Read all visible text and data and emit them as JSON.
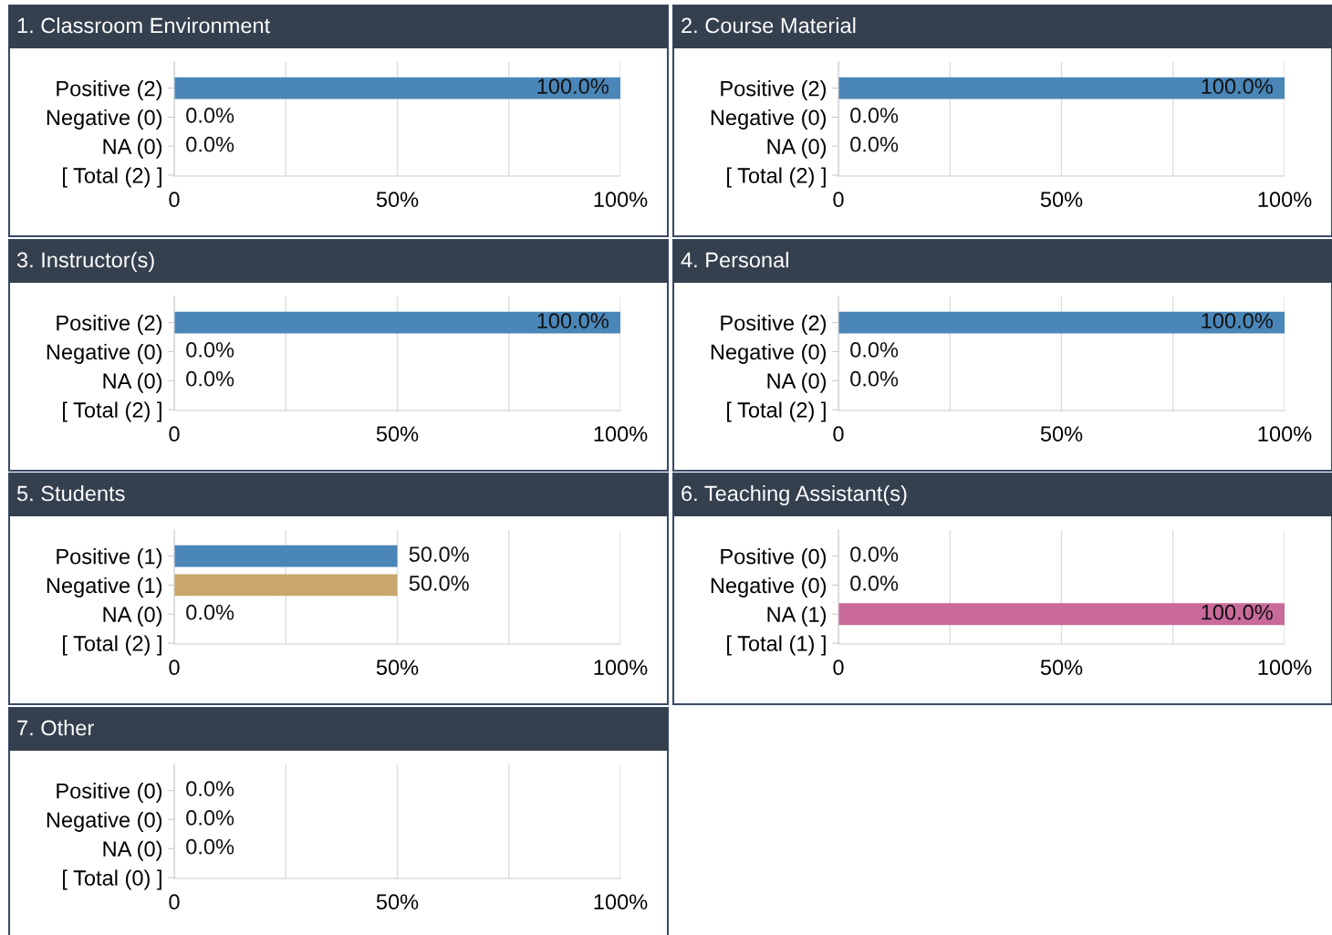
{
  "chart_data": [
    {
      "type": "bar",
      "orientation": "horizontal",
      "title": "1. Classroom Environment",
      "categories": [
        "Positive (2)",
        "Negative (0)",
        "NA (0)",
        "[ Total (2) ]"
      ],
      "values": [
        100,
        0,
        0,
        null
      ],
      "value_labels": [
        "100.0%",
        "0.0%",
        "0.0%",
        null
      ],
      "colors": [
        "#4a86b8",
        "#c9a66b",
        "#c96a9a",
        null
      ],
      "xlim": [
        0,
        100
      ],
      "xticks": [
        {
          "value": 0,
          "label": "0"
        },
        {
          "value": 25,
          "label": null
        },
        {
          "value": 50,
          "label": "50%"
        },
        {
          "value": 75,
          "label": null
        },
        {
          "value": 100,
          "label": "100%"
        }
      ],
      "grid": "x",
      "legend": false
    },
    {
      "type": "bar",
      "orientation": "horizontal",
      "title": "2. Course Material",
      "categories": [
        "Positive (2)",
        "Negative (0)",
        "NA (0)",
        "[ Total (2) ]"
      ],
      "values": [
        100,
        0,
        0,
        null
      ],
      "value_labels": [
        "100.0%",
        "0.0%",
        "0.0%",
        null
      ],
      "colors": [
        "#4a86b8",
        "#c9a66b",
        "#c96a9a",
        null
      ],
      "xlim": [
        0,
        100
      ],
      "xticks": [
        {
          "value": 0,
          "label": "0"
        },
        {
          "value": 25,
          "label": null
        },
        {
          "value": 50,
          "label": "50%"
        },
        {
          "value": 75,
          "label": null
        },
        {
          "value": 100,
          "label": "100%"
        }
      ],
      "grid": "x",
      "legend": false
    },
    {
      "type": "bar",
      "orientation": "horizontal",
      "title": "3. Instructor(s)",
      "categories": [
        "Positive (2)",
        "Negative (0)",
        "NA (0)",
        "[ Total (2) ]"
      ],
      "values": [
        100,
        0,
        0,
        null
      ],
      "value_labels": [
        "100.0%",
        "0.0%",
        "0.0%",
        null
      ],
      "colors": [
        "#4a86b8",
        "#c9a66b",
        "#c96a9a",
        null
      ],
      "xlim": [
        0,
        100
      ],
      "xticks": [
        {
          "value": 0,
          "label": "0"
        },
        {
          "value": 25,
          "label": null
        },
        {
          "value": 50,
          "label": "50%"
        },
        {
          "value": 75,
          "label": null
        },
        {
          "value": 100,
          "label": "100%"
        }
      ],
      "grid": "x",
      "legend": false
    },
    {
      "type": "bar",
      "orientation": "horizontal",
      "title": "4. Personal",
      "categories": [
        "Positive (2)",
        "Negative (0)",
        "NA (0)",
        "[ Total (2) ]"
      ],
      "values": [
        100,
        0,
        0,
        null
      ],
      "value_labels": [
        "100.0%",
        "0.0%",
        "0.0%",
        null
      ],
      "colors": [
        "#4a86b8",
        "#c9a66b",
        "#c96a9a",
        null
      ],
      "xlim": [
        0,
        100
      ],
      "xticks": [
        {
          "value": 0,
          "label": "0"
        },
        {
          "value": 25,
          "label": null
        },
        {
          "value": 50,
          "label": "50%"
        },
        {
          "value": 75,
          "label": null
        },
        {
          "value": 100,
          "label": "100%"
        }
      ],
      "grid": "x",
      "legend": false
    },
    {
      "type": "bar",
      "orientation": "horizontal",
      "title": "5. Students",
      "categories": [
        "Positive (1)",
        "Negative (1)",
        "NA (0)",
        "[ Total (2) ]"
      ],
      "values": [
        50,
        50,
        0,
        null
      ],
      "value_labels": [
        "50.0%",
        "50.0%",
        "0.0%",
        null
      ],
      "colors": [
        "#4a86b8",
        "#c9a66b",
        "#c96a9a",
        null
      ],
      "xlim": [
        0,
        100
      ],
      "xticks": [
        {
          "value": 0,
          "label": "0"
        },
        {
          "value": 25,
          "label": null
        },
        {
          "value": 50,
          "label": "50%"
        },
        {
          "value": 75,
          "label": null
        },
        {
          "value": 100,
          "label": "100%"
        }
      ],
      "grid": "x",
      "legend": false
    },
    {
      "type": "bar",
      "orientation": "horizontal",
      "title": "6. Teaching Assistant(s)",
      "categories": [
        "Positive (0)",
        "Negative (0)",
        "NA (1)",
        "[ Total (1) ]"
      ],
      "values": [
        0,
        0,
        100,
        null
      ],
      "value_labels": [
        "0.0%",
        "0.0%",
        "100.0%",
        null
      ],
      "colors": [
        "#4a86b8",
        "#c9a66b",
        "#c96a9a",
        null
      ],
      "xlim": [
        0,
        100
      ],
      "xticks": [
        {
          "value": 0,
          "label": "0"
        },
        {
          "value": 25,
          "label": null
        },
        {
          "value": 50,
          "label": "50%"
        },
        {
          "value": 75,
          "label": null
        },
        {
          "value": 100,
          "label": "100%"
        }
      ],
      "grid": "x",
      "legend": false
    },
    {
      "type": "bar",
      "orientation": "horizontal",
      "title": "7. Other",
      "categories": [
        "Positive (0)",
        "Negative (0)",
        "NA (0)",
        "[ Total (0) ]"
      ],
      "values": [
        0,
        0,
        0,
        null
      ],
      "value_labels": [
        "0.0%",
        "0.0%",
        "0.0%",
        null
      ],
      "colors": [
        "#4a86b8",
        "#c9a66b",
        "#c96a9a",
        null
      ],
      "xlim": [
        0,
        100
      ],
      "xticks": [
        {
          "value": 0,
          "label": "0"
        },
        {
          "value": 25,
          "label": null
        },
        {
          "value": 50,
          "label": "50%"
        },
        {
          "value": 75,
          "label": null
        },
        {
          "value": 100,
          "label": "100%"
        }
      ],
      "grid": "x",
      "legend": false
    }
  ]
}
